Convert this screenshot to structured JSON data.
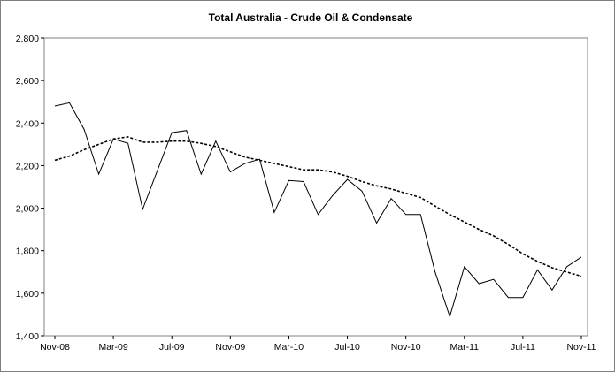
{
  "chart_data": {
    "type": "line",
    "title": "Total Australia - Crude Oil & Condensate",
    "xlabel": "",
    "ylabel": "",
    "ylim": [
      1400,
      2800
    ],
    "yticks": [
      1400,
      1600,
      1800,
      2000,
      2200,
      2400,
      2600,
      2800
    ],
    "ytick_labels": [
      "1,400",
      "1,600",
      "1,800",
      "2,000",
      "2,200",
      "2,400",
      "2,600",
      "2,800"
    ],
    "x": [
      "Nov-08",
      "Dec-08",
      "Jan-09",
      "Feb-09",
      "Mar-09",
      "Apr-09",
      "May-09",
      "Jun-09",
      "Jul-09",
      "Aug-09",
      "Sep-09",
      "Oct-09",
      "Nov-09",
      "Dec-09",
      "Jan-10",
      "Feb-10",
      "Mar-10",
      "Apr-10",
      "May-10",
      "Jun-10",
      "Jul-10",
      "Aug-10",
      "Sep-10",
      "Oct-10",
      "Nov-10",
      "Dec-10",
      "Jan-11",
      "Feb-11",
      "Mar-11",
      "Apr-11",
      "May-11",
      "Jun-11",
      "Jul-11",
      "Aug-11",
      "Sep-11",
      "Oct-11",
      "Nov-11"
    ],
    "xtick_labels": [
      "Nov-08",
      "Mar-09",
      "Jul-09",
      "Nov-09",
      "Mar-10",
      "Jul-10",
      "Nov-10",
      "Mar-11",
      "Jul-11",
      "Nov-11"
    ],
    "grid": false,
    "legend": "none",
    "series": [
      {
        "style": "solid",
        "values": [
          2480,
          2495,
          2370,
          2160,
          2325,
          2305,
          1995,
          2175,
          2355,
          2365,
          2160,
          2315,
          2170,
          2210,
          2230,
          1980,
          2130,
          2125,
          1970,
          2060,
          2135,
          2080,
          1930,
          2045,
          1970,
          1970,
          1700,
          1490,
          1725,
          1645,
          1665,
          1580,
          1580,
          1710,
          1615,
          1725,
          1770
        ]
      },
      {
        "style": "dashed",
        "values": [
          2225,
          2245,
          2275,
          2300,
          2325,
          2335,
          2310,
          2310,
          2315,
          2315,
          2305,
          2290,
          2265,
          2240,
          2225,
          2210,
          2195,
          2180,
          2180,
          2170,
          2150,
          2125,
          2105,
          2090,
          2070,
          2050,
          2010,
          1970,
          1935,
          1900,
          1870,
          1830,
          1785,
          1750,
          1720,
          1700,
          1680
        ]
      }
    ]
  }
}
